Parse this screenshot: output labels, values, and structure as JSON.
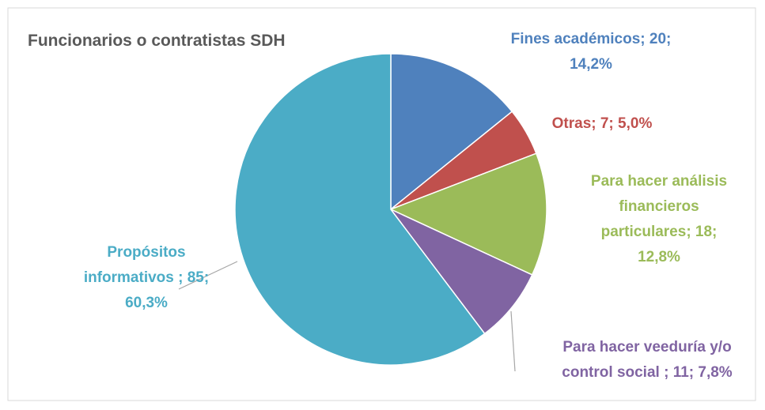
{
  "chart_data": {
    "type": "pie",
    "title": "Funcionarios o contratistas SDH",
    "values": [
      20,
      7,
      18,
      11,
      85
    ],
    "value_labels": [
      "Fines académicos; 20; 14,2%",
      "Otras; 7; 5,0%",
      "Para hacer análisis financieros particulares; 18; 12,8%",
      "Para hacer veeduría y/o control social ; 11; 7,8%",
      "Propósitos informativos ; 85; 60,3%"
    ],
    "colors": [
      "#4f81bd",
      "#c0504d",
      "#9bbb59",
      "#8064a2",
      "#4bacc6"
    ]
  }
}
